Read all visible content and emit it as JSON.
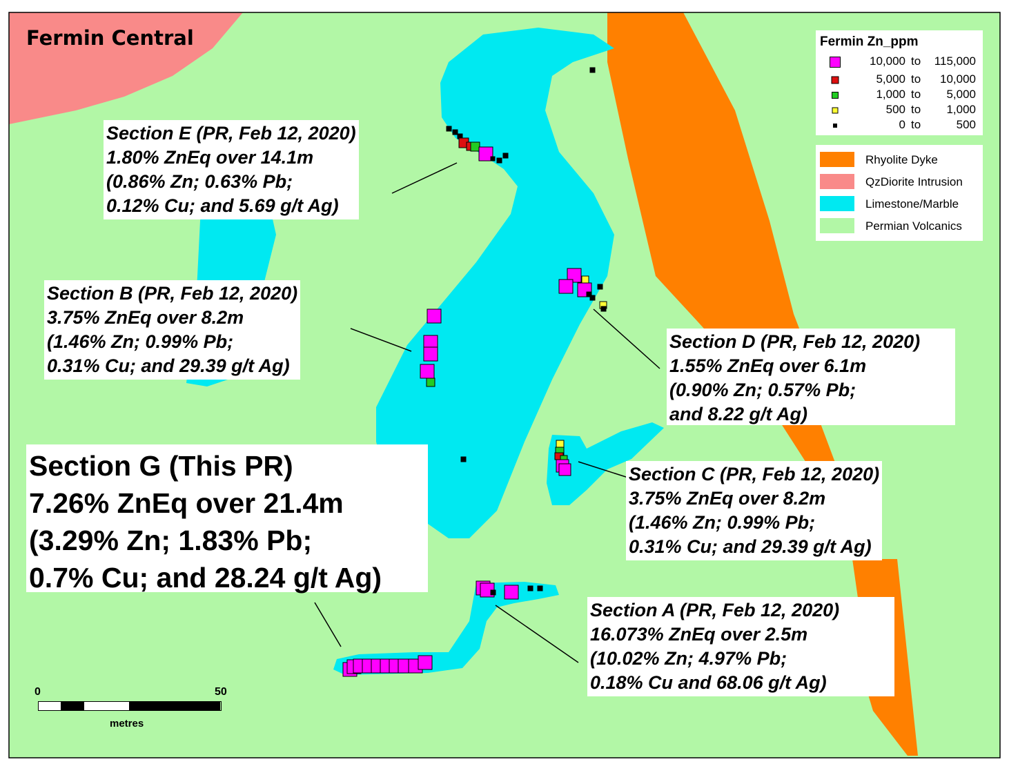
{
  "map": {
    "title": "Fermin Central",
    "colors": {
      "permian_volcanics": "#b2f7a6",
      "limestone_marble": "#00e9f1",
      "rhyolite_dyke": "#ff8000",
      "qzdiorite_intrusion": "#f98a89",
      "zn_10000_115000": "#ff00ff",
      "zn_5000_10000": "#dd1010",
      "zn_1000_5000": "#22cc22",
      "zn_500_1000": "#ffff33",
      "zn_0_500": "#000000"
    }
  },
  "legend_zn": {
    "title": "Fermin Zn_ppm",
    "items": [
      {
        "min": "10,000",
        "to": "to",
        "max": "115,000",
        "color": "#ff00ff"
      },
      {
        "min": "5,000",
        "to": "to",
        "max": "10,000",
        "color": "#dd1010"
      },
      {
        "min": "1,000",
        "to": "to",
        "max": "5,000",
        "color": "#22cc22"
      },
      {
        "min": "500",
        "to": "to",
        "max": "1,000",
        "color": "#ffff33"
      },
      {
        "min": "0",
        "to": "to",
        "max": "500",
        "color": "#000000"
      }
    ]
  },
  "legend_geo": {
    "items": [
      {
        "label": "Rhyolite Dyke",
        "color": "#ff8000"
      },
      {
        "label": "QzDiorite Intrusion",
        "color": "#f98a89"
      },
      {
        "label": "Limestone/Marble",
        "color": "#00e9f1"
      },
      {
        "label": "Permian Volcanics",
        "color": "#b2f7a6"
      }
    ]
  },
  "sections": {
    "e": {
      "lines": [
        "Section E (PR, Feb 12, 2020)",
        "1.80% ZnEq over 14.1m",
        "(0.86% Zn; 0.63% Pb;",
        "0.12% Cu; and 5.69 g/t Ag)"
      ]
    },
    "b": {
      "lines": [
        "Section B (PR, Feb 12, 2020)",
        "3.75% ZnEq over 8.2m",
        "(1.46% Zn; 0.99% Pb;",
        "0.31% Cu; and 29.39 g/t Ag)"
      ]
    },
    "d": {
      "lines": [
        "Section D (PR, Feb 12, 2020)",
        "1.55% ZnEq over 6.1m",
        "(0.90% Zn; 0.57% Pb;",
        "and 8.22 g/t Ag)"
      ]
    },
    "g": {
      "lines": [
        "Section G (This PR)",
        "7.26% ZnEq over 21.4m",
        "(3.29% Zn; 1.83% Pb;",
        "0.7% Cu; and 28.24 g/t Ag)"
      ]
    },
    "c": {
      "lines": [
        "Section C (PR, Feb 12, 2020)",
        "3.75% ZnEq over 8.2m",
        "(1.46% Zn; 0.99% Pb;",
        "0.31% Cu; and 29.39 g/t Ag)"
      ]
    },
    "a": {
      "lines": [
        "Section A (PR, Feb 12, 2020)",
        "16.073% ZnEq over 2.5m",
        "(10.02% Zn; 4.97% Pb;",
        "0.18% Cu and 68.06 g/t Ag)"
      ]
    }
  },
  "scale_bar": {
    "min_label": "0",
    "max_label": "50",
    "unit": "metres"
  }
}
